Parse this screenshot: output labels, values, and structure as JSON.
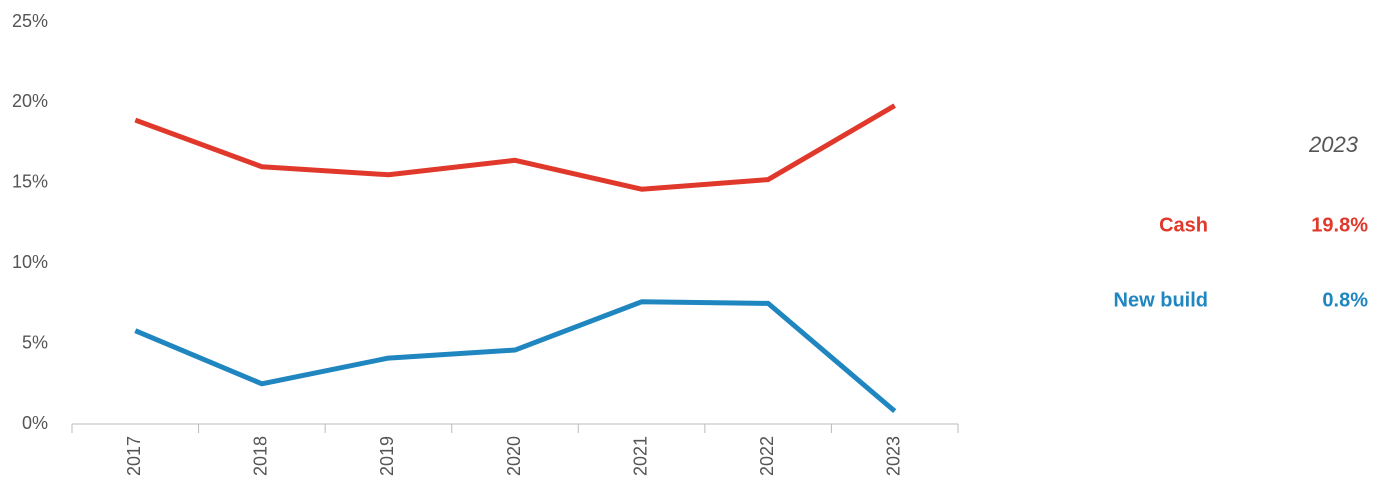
{
  "chart_data": {
    "type": "line",
    "categories": [
      "2017",
      "2018",
      "2019",
      "2020",
      "2021",
      "2022",
      "2023"
    ],
    "series": [
      {
        "name": "Cash",
        "color": "#e0392b",
        "values": [
          18.9,
          16.0,
          15.5,
          16.4,
          14.6,
          15.2,
          19.8
        ],
        "value_labels": [
          null,
          null,
          null,
          null,
          null,
          null,
          "19.8%"
        ]
      },
      {
        "name": "New build",
        "color": "#1f86c0",
        "values": [
          5.8,
          2.5,
          4.1,
          4.6,
          7.6,
          7.5,
          0.8
        ],
        "value_labels": [
          null,
          null,
          null,
          null,
          null,
          null,
          "0.8%"
        ]
      }
    ],
    "legend_title": "2023",
    "ylim": [
      0,
      25
    ],
    "yticks": [
      {
        "value": 0,
        "label": "0%"
      },
      {
        "value": 5,
        "label": "5%"
      },
      {
        "value": 10,
        "label": "10%"
      },
      {
        "value": 15,
        "label": "15%"
      },
      {
        "value": 20,
        "label": "20%"
      },
      {
        "value": 25,
        "label": "25%"
      }
    ],
    "grid": false
  }
}
